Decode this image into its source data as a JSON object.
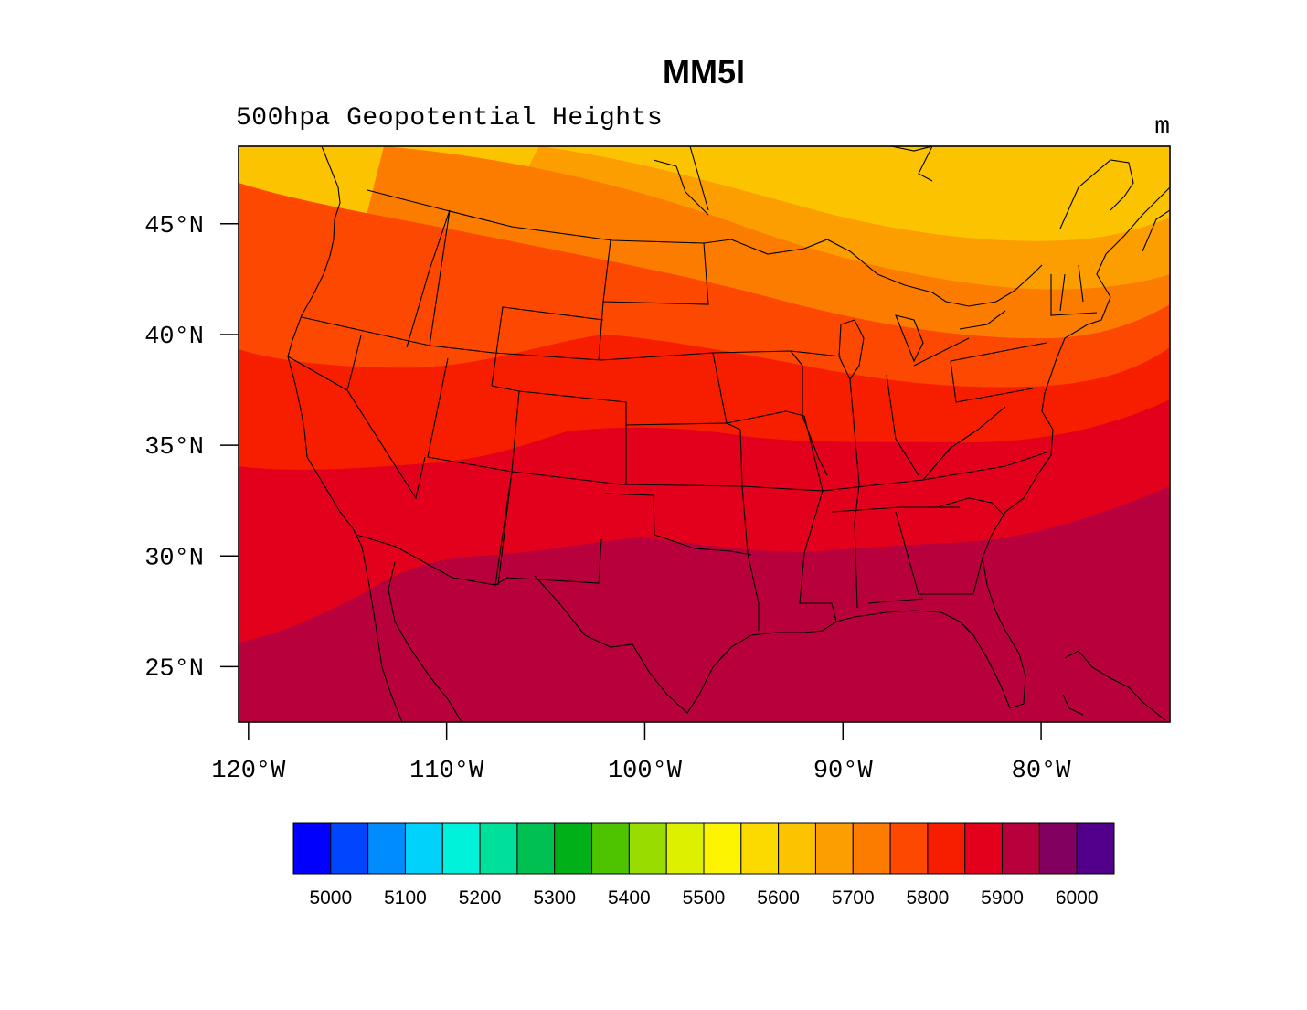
{
  "header": {
    "title": "MM5I",
    "subtitle": "500hpa Geopotential Heights",
    "units": "m"
  },
  "map": {
    "projection": "lat-lon",
    "lon_range": [
      -120.5,
      -73.5
    ],
    "lat_range": [
      22.5,
      48.5
    ],
    "lat_ticks": [
      {
        "value": 45,
        "label": "45°N"
      },
      {
        "value": 40,
        "label": "40°N"
      },
      {
        "value": 35,
        "label": "35°N"
      },
      {
        "value": 30,
        "label": "30°N"
      },
      {
        "value": 25,
        "label": "25°N"
      }
    ],
    "lon_ticks": [
      {
        "value": -120,
        "label": "120°W"
      },
      {
        "value": -110,
        "label": "110°W"
      },
      {
        "value": -100,
        "label": "100°W"
      },
      {
        "value": -90,
        "label": "90°W"
      },
      {
        "value": -80,
        "label": "80°W"
      }
    ],
    "field_bands": [
      {
        "range": "5650-5700",
        "color": "#fcc400"
      },
      {
        "range": "5700-5750",
        "color": "#fc9e00"
      },
      {
        "range": "5750-5800",
        "color": "#fc7c00"
      },
      {
        "range": "5800-5850",
        "color": "#fc4800"
      },
      {
        "range": "5850-5900",
        "color": "#f71e00"
      },
      {
        "range": "5900-5950",
        "color": "#e2001c"
      },
      {
        "range": "5950-6000",
        "color": "#b7003c"
      }
    ],
    "highest_band": {
      "range": "5600-5650",
      "color": "#fcda00"
    }
  },
  "colorbar": {
    "colors": [
      "#0000fc",
      "#0046fc",
      "#008cfc",
      "#00d2fc",
      "#00f2da",
      "#00e09a",
      "#00c052",
      "#00b018",
      "#4ec400",
      "#98dc00",
      "#dcf000",
      "#fcf400",
      "#fcda00",
      "#fcc400",
      "#fc9e00",
      "#fc7c00",
      "#fc4800",
      "#f71e00",
      "#e2001c",
      "#b7003c",
      "#820060",
      "#52008c"
    ],
    "labels": [
      "5000",
      "5100",
      "5200",
      "5300",
      "5400",
      "5500",
      "5600",
      "5700",
      "5800",
      "5900",
      "6000"
    ]
  }
}
